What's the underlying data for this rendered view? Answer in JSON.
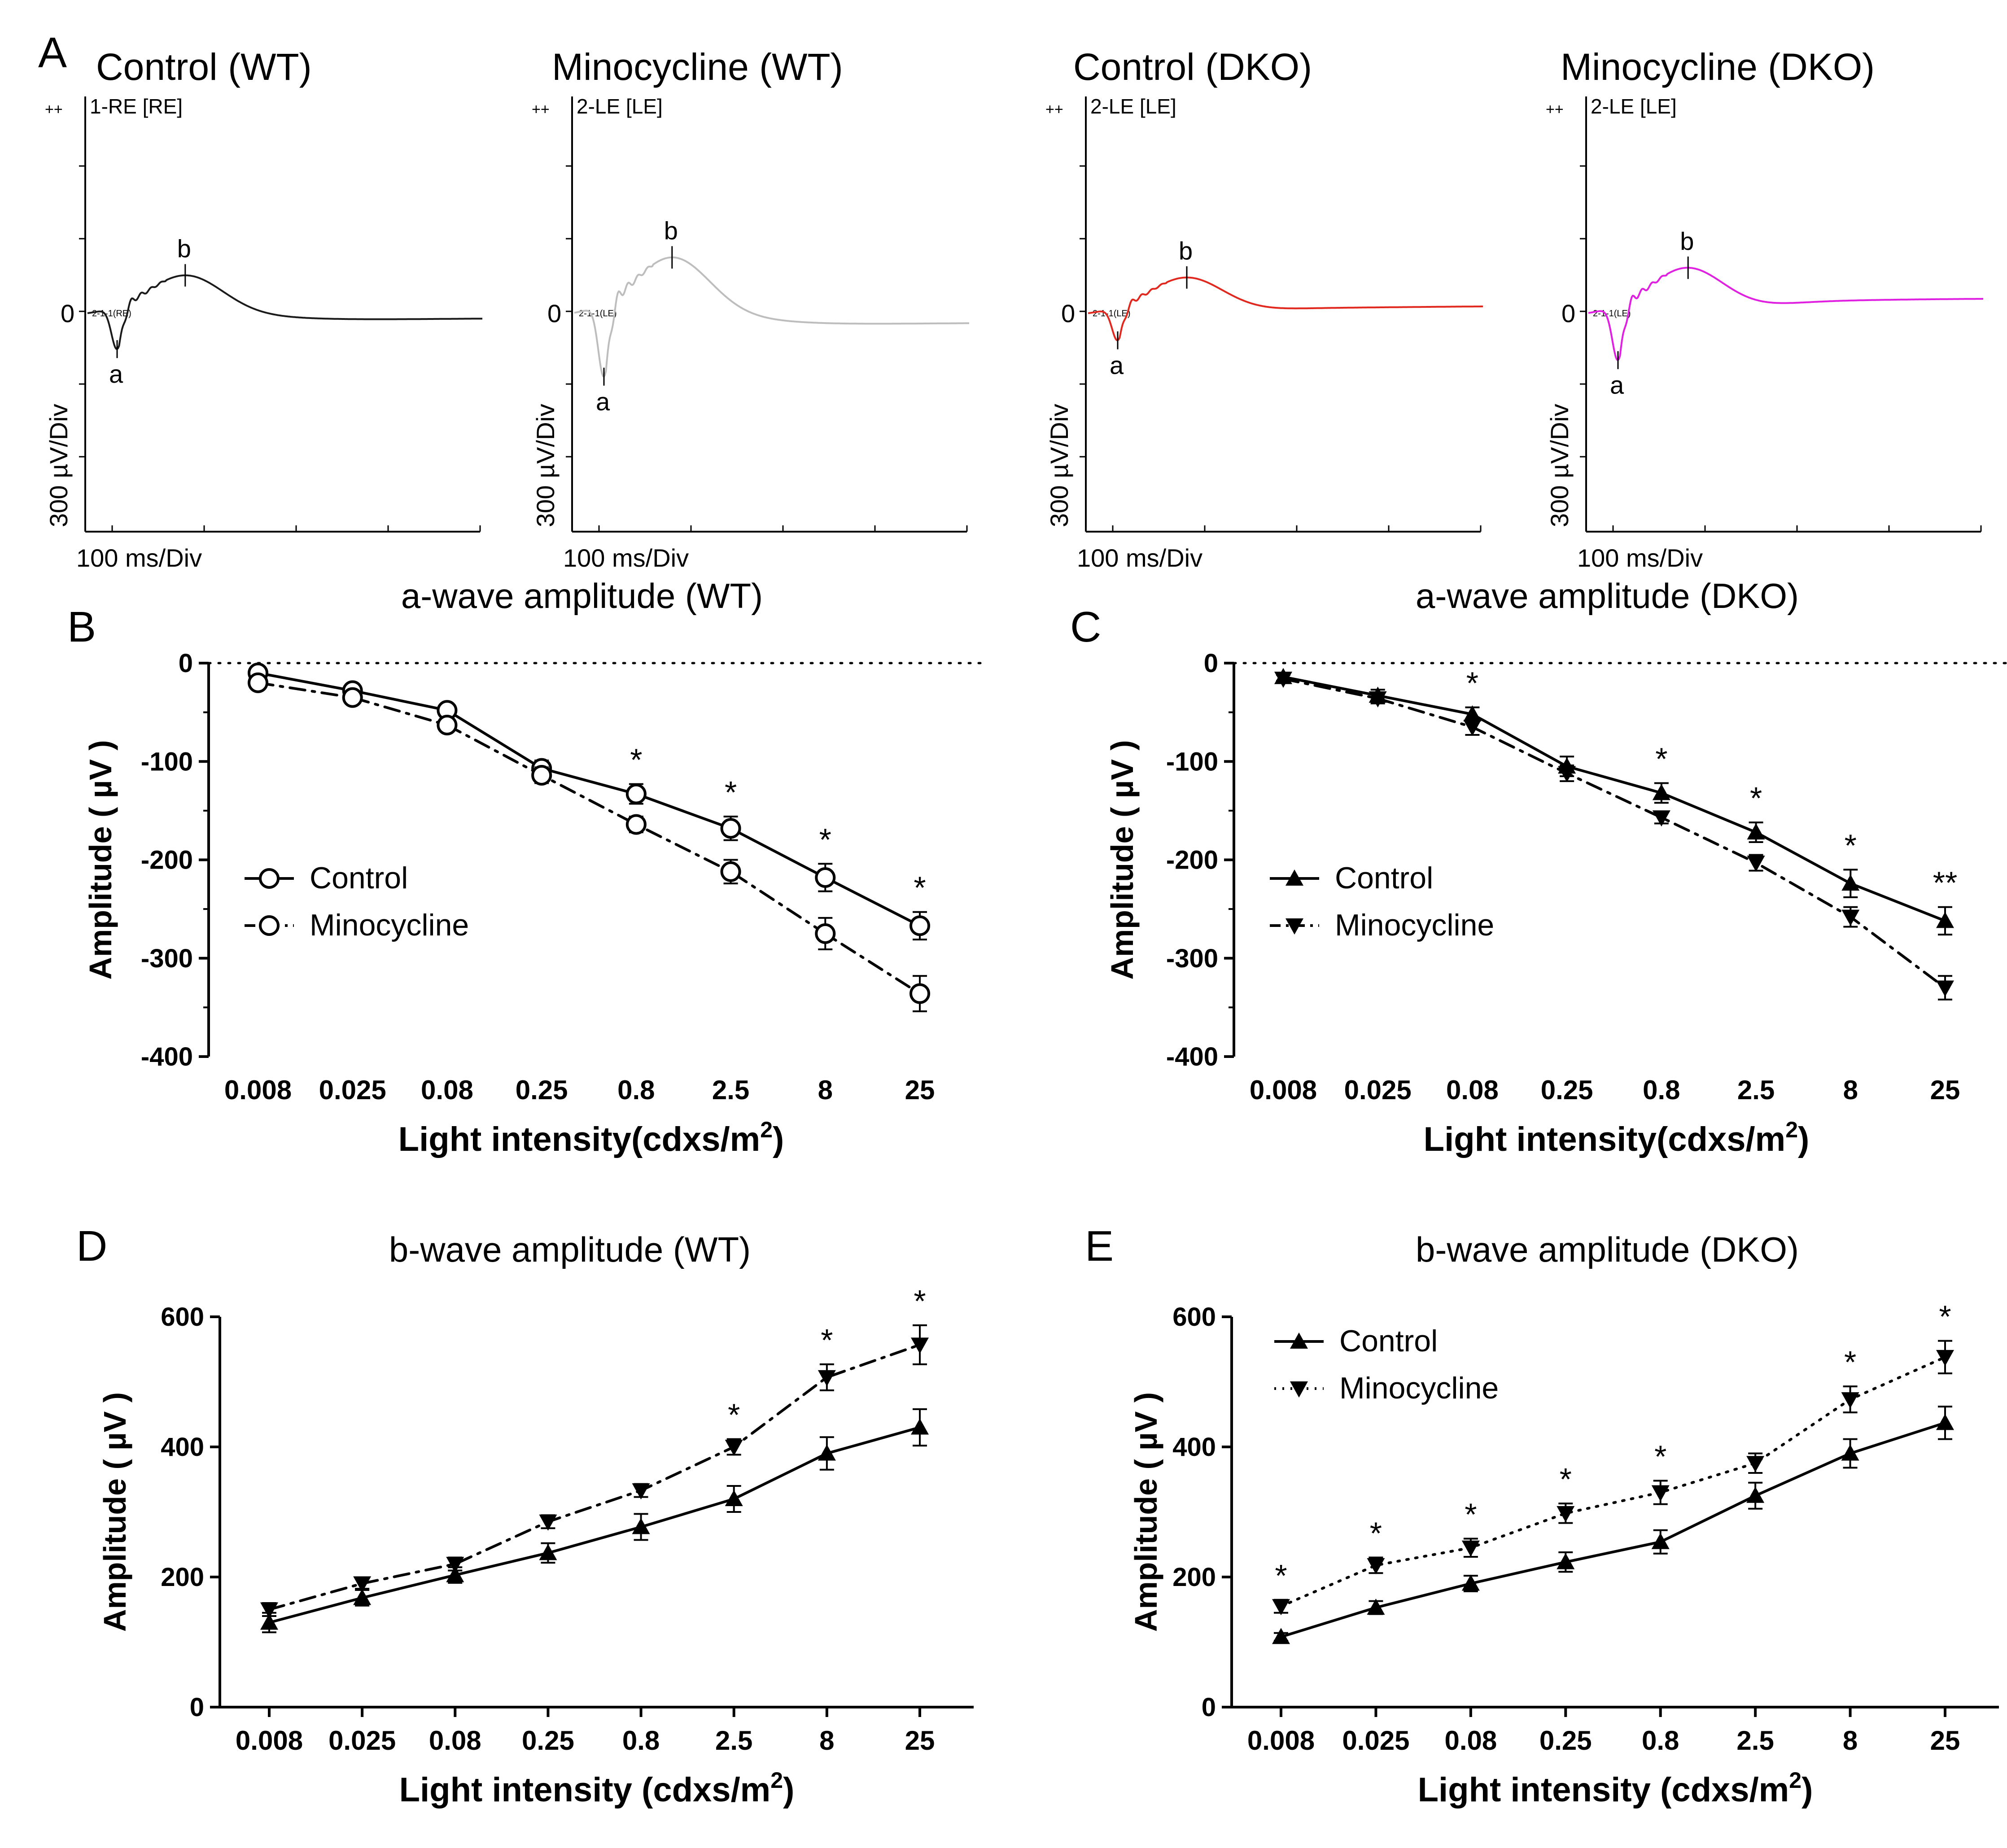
{
  "figure": {
    "panel_labels": {
      "A": "A",
      "B": "B",
      "C": "C",
      "D": "D",
      "E": "E"
    }
  },
  "colors": {
    "wt_control": "#1a1a1a",
    "wt_minocycline": "#bdbdbd",
    "dko_control": "#e0281e",
    "dko_minocycline": "#e020e0",
    "axis": "#000000"
  },
  "traces": [
    {
      "title": "Control (WT)",
      "channel": "1-RE [RE]",
      "color": "wt_control",
      "a_depth": 0.28,
      "b_height": 0.24,
      "late": -0.03,
      "marker_label": "2-1-1(RE)"
    },
    {
      "title": "Minocycline (WT)",
      "channel": "2-LE [LE]",
      "color": "wt_minocycline",
      "a_depth": 0.48,
      "b_height": 0.36,
      "late": -0.06,
      "marker_label": "2-1-1(LE)"
    },
    {
      "title": "Control (DKO)",
      "channel": "2-LE [LE]",
      "color": "dko_control",
      "a_depth": 0.22,
      "b_height": 0.22,
      "late": 0.05,
      "marker_label": "2-1-1(LE)"
    },
    {
      "title": "Minocycline (DKO)",
      "channel": "2-LE [LE]",
      "color": "dko_minocycline",
      "a_depth": 0.36,
      "b_height": 0.28,
      "late": 0.1,
      "marker_label": "2-1-1(LE)"
    }
  ],
  "trace_common": {
    "zero_label": "0",
    "ylabel": "300 µV/Div",
    "xlabel": "100 ms/Div",
    "a_label": "a",
    "b_label": "b",
    "corner_mark": "++"
  },
  "chart_data": [
    {
      "id": "B",
      "type": "line",
      "title": "a-wave amplitude (WT)",
      "xlabel": "Light intensity(cdxs/m",
      "xlabel_sup": "2",
      "xlabel_end": ")",
      "ylabel": "Amplitude ( µV )",
      "categories": [
        "0.008",
        "0.025",
        "0.08",
        "0.25",
        "0.8",
        "2.5",
        "8",
        "25"
      ],
      "ylim": [
        -400,
        0
      ],
      "yticks": [
        0,
        -100,
        -200,
        -300,
        -400
      ],
      "zero_line": true,
      "series": [
        {
          "name": "Control",
          "marker": "circle",
          "dash": "solid",
          "values": [
            -10,
            -28,
            -48,
            -107,
            -133,
            -168,
            -218,
            -267
          ],
          "errors": [
            4,
            5,
            6,
            8,
            10,
            12,
            14,
            14
          ]
        },
        {
          "name": "Minocycline",
          "marker": "circle",
          "dash": "dashdot",
          "values": [
            -20,
            -35,
            -63,
            -114,
            -164,
            -212,
            -275,
            -336
          ],
          "errors": [
            4,
            5,
            6,
            8,
            8,
            12,
            16,
            18
          ]
        }
      ],
      "significance": [
        "",
        "",
        "",
        "",
        "*",
        "*",
        "*",
        "*"
      ],
      "legend": "middle-left"
    },
    {
      "id": "C",
      "type": "line",
      "title": "a-wave amplitude (DKO)",
      "xlabel": "Light intensity(cdxs/m",
      "xlabel_sup": "2",
      "xlabel_end": ")",
      "ylabel": "Amplitude ( µV )",
      "categories": [
        "0.008",
        "0.025",
        "0.08",
        "0.25",
        "0.8",
        "2.5",
        "8",
        "25"
      ],
      "ylim": [
        -400,
        0
      ],
      "yticks": [
        0,
        -100,
        -200,
        -300,
        -400
      ],
      "zero_line": true,
      "series": [
        {
          "name": "Control",
          "marker": "triangle-up",
          "dash": "solid",
          "values": [
            -14,
            -33,
            -52,
            -105,
            -132,
            -172,
            -224,
            -262
          ],
          "errors": [
            4,
            6,
            7,
            10,
            10,
            10,
            14,
            14
          ]
        },
        {
          "name": "Minocycline",
          "marker": "triangle-down",
          "dash": "dashdot",
          "values": [
            -16,
            -36,
            -65,
            -112,
            -157,
            -203,
            -258,
            -330
          ],
          "errors": [
            4,
            5,
            8,
            8,
            6,
            8,
            10,
            12
          ]
        }
      ],
      "significance": [
        "",
        "",
        "*",
        "",
        "*",
        "*",
        "*",
        "**"
      ],
      "legend": "middle-left"
    },
    {
      "id": "D",
      "type": "line",
      "title": "b-wave amplitude (WT)",
      "xlabel": "Light intensity (cdxs/m",
      "xlabel_sup": "2",
      "xlabel_end": ")",
      "ylabel": "Amplitude ( µV )",
      "categories": [
        "0.008",
        "0.025",
        "0.08",
        "0.25",
        "0.8",
        "2.5",
        "8",
        "25"
      ],
      "ylim": [
        0,
        600
      ],
      "yticks": [
        0,
        200,
        400,
        600
      ],
      "zero_line": false,
      "series": [
        {
          "name": "Control",
          "marker": "triangle-up",
          "dash": "solid",
          "values": [
            130,
            168,
            203,
            237,
            277,
            320,
            390,
            430
          ],
          "errors": [
            15,
            12,
            12,
            15,
            20,
            20,
            25,
            28
          ]
        },
        {
          "name": "Minocycline",
          "marker": "triangle-down",
          "dash": "dashdot",
          "values": [
            150,
            190,
            220,
            285,
            333,
            400,
            507,
            557
          ],
          "errors": [
            10,
            8,
            10,
            10,
            10,
            12,
            20,
            30
          ]
        }
      ],
      "significance": [
        "",
        "",
        "",
        "",
        "",
        "*",
        "*",
        "*"
      ],
      "legend": "none"
    },
    {
      "id": "E",
      "type": "line",
      "title": "b-wave amplitude (DKO)",
      "xlabel": "Light intensity (cdxs/m",
      "xlabel_sup": "2",
      "xlabel_end": ")",
      "ylabel": "Amplitude ( µV )",
      "categories": [
        "0.008",
        "0.025",
        "0.08",
        "0.25",
        "0.8",
        "2.5",
        "8",
        "25"
      ],
      "ylim": [
        0,
        600
      ],
      "yticks": [
        0,
        200,
        400,
        600
      ],
      "zero_line": false,
      "series": [
        {
          "name": "Control",
          "marker": "triangle-up",
          "dash": "solid",
          "values": [
            108,
            153,
            190,
            223,
            254,
            325,
            390,
            437
          ],
          "errors": [
            6,
            10,
            12,
            15,
            18,
            20,
            22,
            25
          ]
        },
        {
          "name": "Minocycline",
          "marker": "triangle-down",
          "dash": "dotted",
          "values": [
            155,
            218,
            245,
            298,
            330,
            375,
            473,
            538
          ],
          "errors": [
            10,
            12,
            14,
            15,
            18,
            15,
            20,
            25
          ]
        }
      ],
      "significance": [
        "*",
        "*",
        "*",
        "*",
        "*",
        "",
        "*",
        "*"
      ],
      "legend": "top-left"
    }
  ]
}
